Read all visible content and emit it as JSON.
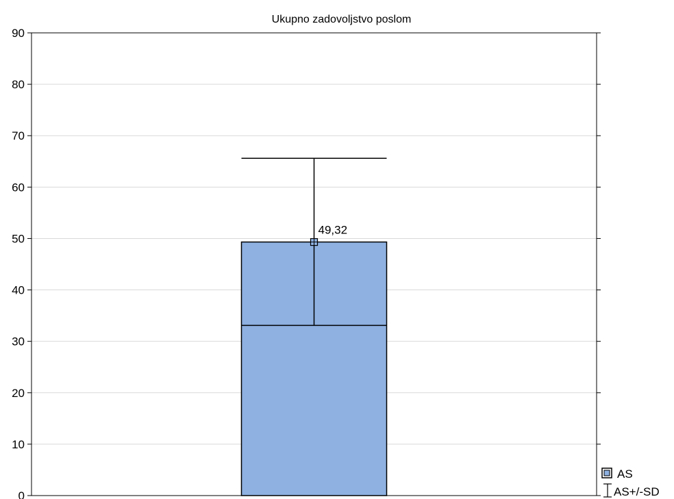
{
  "chart_data": {
    "type": "bar",
    "title": "Ukupno zadovoljstvo poslom",
    "xlabel": "",
    "ylabel": "",
    "ylim": [
      0,
      90
    ],
    "yticks": [
      0,
      10,
      20,
      30,
      40,
      50,
      60,
      70,
      80,
      90
    ],
    "grid": true,
    "legend_position": "bottom-right",
    "categories": [
      ""
    ],
    "series": [
      {
        "name": "AS",
        "values": [
          49.32
        ],
        "error_low": [
          33.1
        ],
        "error_high": [
          65.6
        ],
        "data_label": "49,32"
      }
    ],
    "legend": [
      {
        "label": "AS",
        "symbol": "filled-square"
      },
      {
        "label": "AS+/-SD",
        "symbol": "error-bar"
      }
    ],
    "colors": {
      "bar_fill": "#8EB1E1",
      "bar_stroke": "#000000",
      "grid": "#D9D9D9",
      "axis": "#000000"
    }
  }
}
